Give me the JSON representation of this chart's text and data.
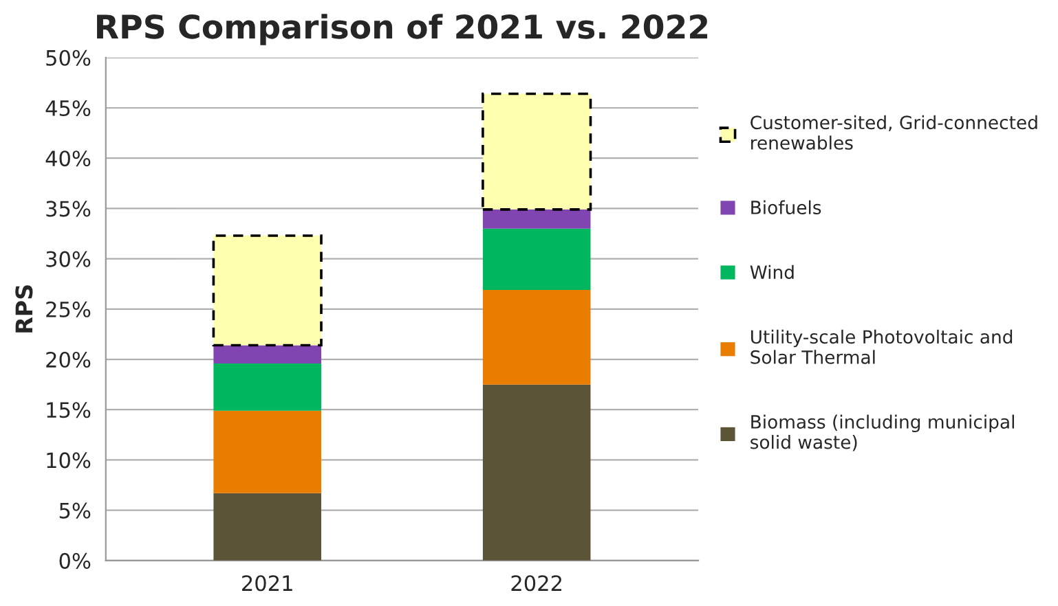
{
  "chart_data": {
    "type": "bar",
    "title": "RPS Comparison of 2021 vs. 2022",
    "ylabel": "RPS",
    "categories": [
      "2021",
      "2022"
    ],
    "stacked": true,
    "grid": "y",
    "legend": "right",
    "ylim": [
      0,
      50
    ],
    "yticks": [
      {
        "value": 0,
        "label": "0%"
      },
      {
        "value": 5,
        "label": "5%"
      },
      {
        "value": 10,
        "label": "10%"
      },
      {
        "value": 15,
        "label": "15%"
      },
      {
        "value": 20,
        "label": "20%"
      },
      {
        "value": 25,
        "label": "25%"
      },
      {
        "value": 30,
        "label": "30%"
      },
      {
        "value": 35,
        "label": "35%"
      },
      {
        "value": 40,
        "label": "40%"
      },
      {
        "value": 45,
        "label": "45%"
      },
      {
        "value": 50,
        "label": "50%"
      }
    ],
    "series": [
      {
        "name": "Biomass (including municipal solid waste)",
        "color": "#5b5436",
        "values": [
          6.7,
          17.5
        ]
      },
      {
        "name": "Utility-scale Photovoltaic and Solar Thermal",
        "color": "#e87d00",
        "values": [
          8.2,
          9.4
        ]
      },
      {
        "name": "Wind",
        "color": "#00b760",
        "values": [
          4.7,
          6.1
        ]
      },
      {
        "name": "Biofuels",
        "color": "#8045b0",
        "values": [
          1.8,
          1.9
        ]
      },
      {
        "name": "Customer-sited, Grid-connected renewables",
        "color": "#ffffb0",
        "values": [
          10.9,
          11.5
        ],
        "line_style": "dashed"
      }
    ]
  }
}
